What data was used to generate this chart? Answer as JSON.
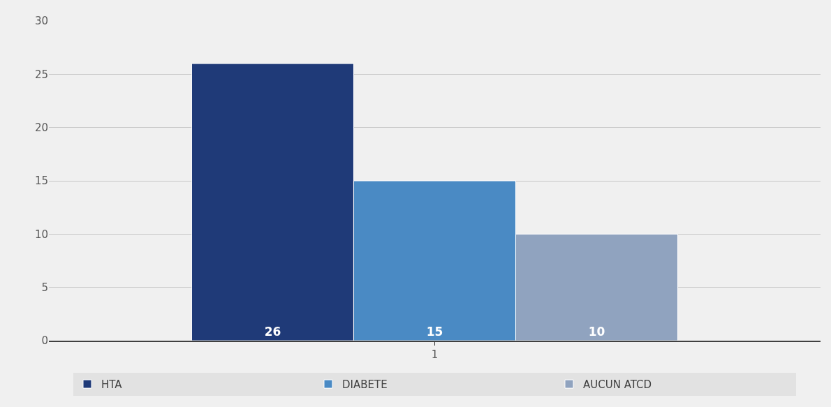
{
  "chart_data": {
    "type": "bar",
    "categories": [
      "1"
    ],
    "series": [
      {
        "name": "HTA",
        "color": "#1f3a78",
        "values": [
          26
        ]
      },
      {
        "name": "DIABETE",
        "color": "#4a8ac4",
        "values": [
          15
        ]
      },
      {
        "name": "AUCUN ATCD",
        "color": "#90a3bf",
        "values": [
          10
        ]
      }
    ],
    "ylim": [
      0,
      30
    ],
    "yticks": [
      0,
      5,
      10,
      15,
      20,
      25,
      30
    ],
    "grid": "y",
    "legend": "bottom",
    "data_labels": true
  }
}
